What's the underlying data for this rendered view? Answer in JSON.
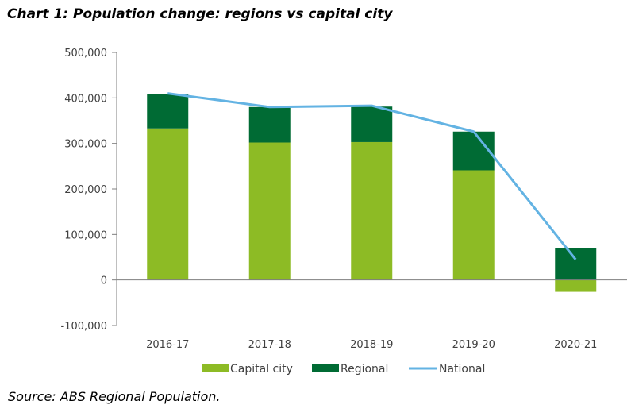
{
  "chart_data": {
    "type": "bar",
    "stacked": true,
    "title": "Chart 1: Population change: regions vs capital city",
    "categories": [
      "2016-17",
      "2017-18",
      "2018-19",
      "2019-20",
      "2020-21"
    ],
    "series": [
      {
        "name": "Capital city",
        "kind": "bar",
        "color": "#8dbb25",
        "values": [
          333000,
          302000,
          303000,
          241000,
          -26000
        ]
      },
      {
        "name": "Regional",
        "kind": "bar",
        "color": "#006b34",
        "values": [
          76000,
          78000,
          78000,
          85000,
          70000
        ]
      },
      {
        "name": "National",
        "kind": "line",
        "color": "#63b3e3",
        "values": [
          410000,
          380000,
          383000,
          326000,
          45000
        ]
      }
    ],
    "ylim": [
      -100000,
      500000
    ],
    "yticks": [
      -100000,
      0,
      100000,
      200000,
      300000,
      400000,
      500000
    ],
    "ytick_labels": [
      "-100,000",
      "0",
      "100,000",
      "200,000",
      "300,000",
      "400,000",
      "500,000"
    ],
    "xlabel": "",
    "ylabel": "",
    "legend_position": "bottom",
    "grid": false
  },
  "source": "Source: ABS Regional Population."
}
